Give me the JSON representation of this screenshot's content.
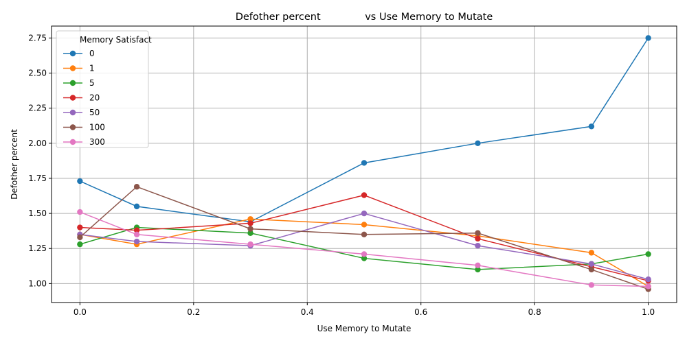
{
  "chart_data": {
    "type": "line",
    "title": "Defother percent              vs Use Memory to Mutate",
    "xlabel": "Use Memory to Mutate",
    "ylabel": "Defother percent",
    "xlim": [
      -0.05,
      1.05
    ],
    "ylim": [
      0.865,
      2.835
    ],
    "xticks": [
      0.0,
      0.2,
      0.4,
      0.6,
      0.8,
      1.0
    ],
    "xtick_labels": [
      "0.0",
      "0.2",
      "0.4",
      "0.6",
      "0.8",
      "1.0"
    ],
    "yticks": [
      1.0,
      1.25,
      1.5,
      1.75,
      2.0,
      2.25,
      2.5,
      2.75
    ],
    "ytick_labels": [
      "1.00",
      "1.25",
      "1.50",
      "1.75",
      "2.00",
      "2.25",
      "2.50",
      "2.75"
    ],
    "grid": true,
    "legend_title": "Memory Satisfact",
    "legend_position": "top-left",
    "x": [
      0.0,
      0.1,
      0.3,
      0.5,
      0.7,
      0.9,
      1.0
    ],
    "series": [
      {
        "name": "0",
        "color": "#1f77b4",
        "values": [
          1.73,
          1.55,
          1.44,
          1.86,
          2.0,
          2.12,
          2.75
        ]
      },
      {
        "name": "1",
        "color": "#ff7f0e",
        "values": [
          1.35,
          1.28,
          1.46,
          1.42,
          1.34,
          1.22,
          0.98
        ]
      },
      {
        "name": "5",
        "color": "#2ca02c",
        "values": [
          1.28,
          1.4,
          1.36,
          1.18,
          1.1,
          1.14,
          1.21
        ]
      },
      {
        "name": "20",
        "color": "#d62728",
        "values": [
          1.4,
          1.38,
          1.43,
          1.63,
          1.32,
          1.12,
          1.02
        ]
      },
      {
        "name": "50",
        "color": "#9467bd",
        "values": [
          1.35,
          1.3,
          1.27,
          1.5,
          1.27,
          1.14,
          1.03
        ]
      },
      {
        "name": "100",
        "color": "#8c564b",
        "values": [
          1.33,
          1.69,
          1.39,
          1.35,
          1.36,
          1.1,
          0.96
        ]
      },
      {
        "name": "300",
        "color": "#e377c2",
        "values": [
          1.51,
          1.35,
          1.28,
          1.21,
          1.13,
          0.99,
          0.98
        ]
      }
    ]
  }
}
